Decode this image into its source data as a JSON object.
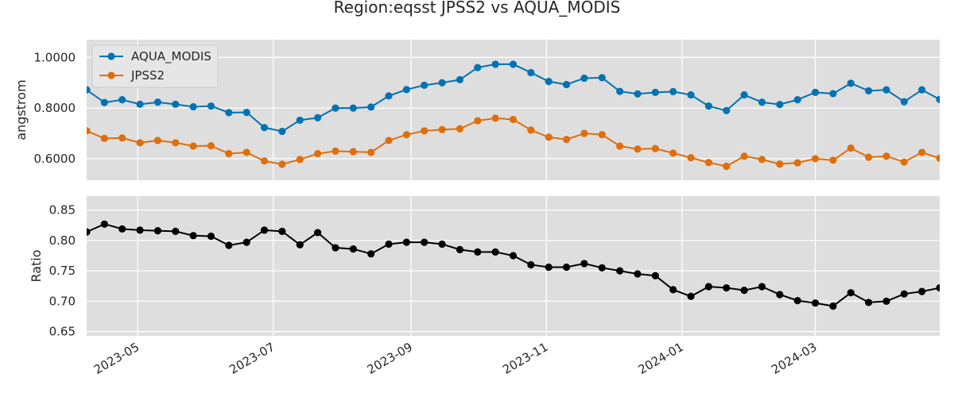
{
  "chart_data": {
    "title": "Region:eqsst JPSS2 vs AQUA_MODIS",
    "x": [
      "2023-04-08",
      "2023-04-16",
      "2023-04-24",
      "2023-05-02",
      "2023-05-10",
      "2023-05-18",
      "2023-05-26",
      "2023-06-03",
      "2023-06-11",
      "2023-06-19",
      "2023-06-27",
      "2023-07-05",
      "2023-07-13",
      "2023-07-21",
      "2023-07-29",
      "2023-08-06",
      "2023-08-14",
      "2023-08-22",
      "2023-08-30",
      "2023-09-07",
      "2023-09-15",
      "2023-09-23",
      "2023-10-01",
      "2023-10-09",
      "2023-10-17",
      "2023-10-25",
      "2023-11-02",
      "2023-11-10",
      "2023-11-18",
      "2023-11-26",
      "2023-12-04",
      "2023-12-12",
      "2023-12-20",
      "2023-12-28",
      "2024-01-05",
      "2024-01-13",
      "2024-01-21",
      "2024-01-29",
      "2024-02-06",
      "2024-02-14",
      "2024-02-22",
      "2024-03-01",
      "2024-03-09",
      "2024-03-17",
      "2024-03-25",
      "2024-04-02",
      "2024-04-10",
      "2024-04-18",
      "2024-04-26"
    ],
    "x_tick_labels": [
      "2023-05",
      "2023-07",
      "2023-09",
      "2023-11",
      "2024-01",
      "2024-03"
    ],
    "x_tick_dates": [
      "2023-05-01",
      "2023-07-01",
      "2023-09-01",
      "2023-11-01",
      "2024-01-01",
      "2024-03-01"
    ],
    "xlim": [
      "2023-04-08",
      "2024-04-26"
    ],
    "grid": true,
    "panels": [
      {
        "type": "line",
        "ylabel": "angstrom",
        "ylim": [
          0.515,
          1.07
        ],
        "y_ticks": [
          0.6,
          0.8,
          1.0
        ],
        "y_tick_labels": [
          "0.6000",
          "0.8000",
          "1.0000"
        ],
        "legend": "top-left",
        "series": [
          {
            "name": "AQUA_MODIS",
            "color": "#0173b2",
            "values": [
              0.872,
              0.822,
              0.833,
              0.815,
              0.823,
              0.815,
              0.805,
              0.808,
              0.782,
              0.783,
              0.723,
              0.708,
              0.752,
              0.762,
              0.8,
              0.8,
              0.804,
              0.848,
              0.873,
              0.89,
              0.9,
              0.912,
              0.96,
              0.973,
              0.973,
              0.94,
              0.905,
              0.893,
              0.918,
              0.92,
              0.866,
              0.856,
              0.862,
              0.865,
              0.852,
              0.808,
              0.79,
              0.852,
              0.823,
              0.814,
              0.833,
              0.862,
              0.857,
              0.898,
              0.868,
              0.872,
              0.825,
              0.872,
              0.834
            ]
          },
          {
            "name": "JPSS2",
            "color": "#de6f0c",
            "values": [
              0.71,
              0.68,
              0.682,
              0.663,
              0.672,
              0.663,
              0.65,
              0.651,
              0.62,
              0.625,
              0.591,
              0.578,
              0.597,
              0.62,
              0.63,
              0.628,
              0.625,
              0.672,
              0.695,
              0.71,
              0.715,
              0.718,
              0.75,
              0.76,
              0.755,
              0.713,
              0.685,
              0.676,
              0.7,
              0.695,
              0.65,
              0.638,
              0.64,
              0.622,
              0.604,
              0.585,
              0.57,
              0.61,
              0.597,
              0.579,
              0.584,
              0.6,
              0.594,
              0.642,
              0.606,
              0.61,
              0.587,
              0.625,
              0.602
            ]
          }
        ]
      },
      {
        "type": "line",
        "ylabel": "Ratio",
        "ylim": [
          0.643,
          0.873
        ],
        "y_ticks": [
          0.65,
          0.7,
          0.75,
          0.8,
          0.85
        ],
        "y_tick_labels": [
          "0.65",
          "0.70",
          "0.75",
          "0.80",
          "0.85"
        ],
        "series": [
          {
            "color": "#000000",
            "values": [
              0.814,
              0.827,
              0.819,
              0.817,
              0.816,
              0.815,
              0.808,
              0.807,
              0.792,
              0.797,
              0.817,
              0.815,
              0.793,
              0.813,
              0.788,
              0.786,
              0.778,
              0.794,
              0.797,
              0.797,
              0.794,
              0.785,
              0.781,
              0.781,
              0.775,
              0.76,
              0.756,
              0.756,
              0.762,
              0.755,
              0.75,
              0.745,
              0.742,
              0.719,
              0.708,
              0.724,
              0.722,
              0.718,
              0.724,
              0.711,
              0.701,
              0.697,
              0.692,
              0.714,
              0.698,
              0.7,
              0.712,
              0.716,
              0.722
            ]
          }
        ]
      }
    ]
  }
}
